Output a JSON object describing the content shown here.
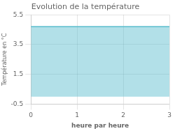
{
  "chart_data": {
    "type": "area",
    "title": "Evolution de la température",
    "xlabel": "heure par heure",
    "ylabel": "Température en °C",
    "x": [
      0,
      3
    ],
    "values": [
      4.7,
      4.7
    ],
    "color": "#55bbcc",
    "xlim": [
      0,
      3
    ],
    "ylim": [
      -0.5,
      5.5
    ],
    "xticks": [
      0,
      1,
      2,
      3
    ],
    "yticks": [
      -0.5,
      1.5,
      3.5,
      5.5
    ],
    "grid": true
  }
}
